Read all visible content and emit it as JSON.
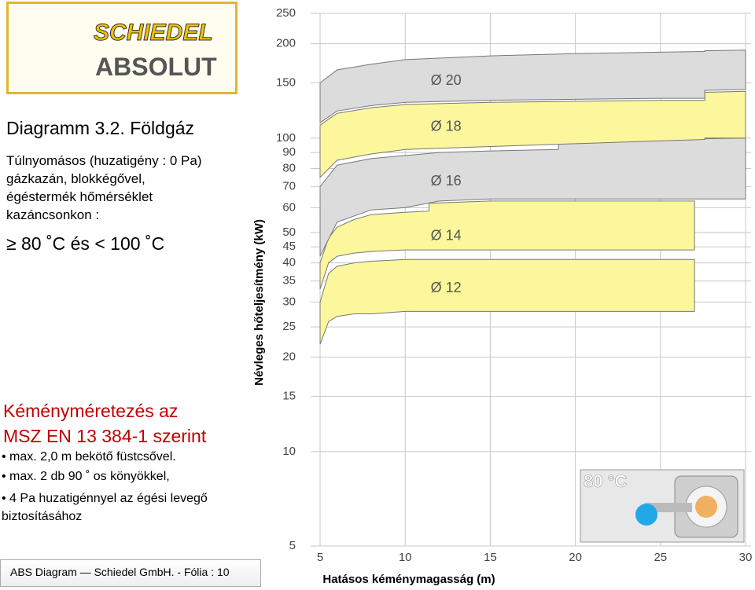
{
  "header": {
    "brand": "SCHIEDEL",
    "product": "ABSOLUT"
  },
  "slide": {
    "title": "Diagramm 3.2. Földgáz",
    "description": [
      "Túlnyomásos (huzatigény : 0 Pa)",
      "gázkazán, blokkégővel,",
      "égéstermék hőmérséklet",
      "kazáncsonkon :"
    ],
    "condition": "≥ 80 ˚C és < 100 ˚C",
    "section_title": [
      "Kéményméretezés az",
      "MSZ EN 13 384-1 szerint"
    ],
    "bullets": [
      "max. 2,0 m bekötő füstcsővel.",
      "max. 2 db 90 ˚ os könyökkel,",
      "4 Pa huzatigénnyel az égési levegő biztosításához"
    ],
    "footer": "ABS Diagram — Schiedel GmbH. - Fólia : 10"
  },
  "badge": "80 °C",
  "chart_data": {
    "type": "band",
    "ylabel": "Névleges hőteljesítmény (kW)",
    "xlabel": "Hatásos kéménymagasság (m)",
    "xlim": [
      5,
      30
    ],
    "xticks": [
      5,
      10,
      15,
      20,
      25,
      30
    ],
    "ylim": [
      5,
      250
    ],
    "yscale": "log",
    "yticks": [
      5,
      10,
      15,
      20,
      25,
      30,
      35,
      40,
      45,
      50,
      60,
      70,
      80,
      90,
      100,
      150,
      200,
      250
    ],
    "grid": true,
    "series": [
      {
        "name": "Ø 12",
        "color": "#fcf69c",
        "x": [
          5,
          5.5,
          6,
          7,
          8,
          10,
          15,
          20,
          27
        ],
        "lower": [
          22,
          26,
          27,
          27.5,
          27.5,
          28,
          28,
          28,
          28
        ],
        "upper": [
          30,
          37,
          39,
          40,
          40.5,
          41,
          41,
          41,
          41
        ]
      },
      {
        "name": "Ø 14",
        "color": "#fcf69c",
        "x": [
          5,
          5.5,
          6,
          7,
          8,
          10,
          11.4,
          11.4,
          15,
          20,
          27
        ],
        "lower": [
          33,
          40,
          42,
          43,
          43.5,
          44,
          44,
          44,
          44,
          44,
          44
        ],
        "upper": [
          40,
          48,
          52,
          55,
          57,
          58,
          58.5,
          62,
          63,
          63,
          63
        ]
      },
      {
        "name": "Ø 16",
        "color": "#dcdcdc",
        "x": [
          5,
          6,
          8,
          10,
          12,
          15,
          19,
          19,
          25,
          30
        ],
        "lower": [
          42,
          54,
          59,
          60,
          63,
          64,
          64,
          64,
          64,
          64
        ],
        "upper": [
          70,
          82,
          86,
          88,
          90,
          91,
          92,
          98,
          99,
          100
        ]
      },
      {
        "name": "Ø 18",
        "color": "#fcf69c",
        "x": [
          5,
          6,
          8,
          10,
          15,
          20,
          25,
          27.6,
          27.6,
          30
        ],
        "lower": [
          75,
          85,
          89,
          92,
          94,
          96,
          98,
          99,
          100,
          100
        ],
        "upper": [
          110,
          120,
          125,
          128,
          130,
          131,
          132,
          132,
          140,
          141
        ]
      },
      {
        "name": "Ø 20",
        "color": "#dcdcdc",
        "x": [
          5,
          6,
          8,
          10,
          15,
          20,
          25,
          27.6,
          27.6,
          30
        ],
        "lower": [
          112,
          122,
          127,
          130,
          132,
          133,
          134,
          134,
          142,
          143
        ],
        "upper": [
          150,
          165,
          172,
          178,
          183,
          186,
          188,
          189,
          190,
          191
        ]
      }
    ]
  }
}
